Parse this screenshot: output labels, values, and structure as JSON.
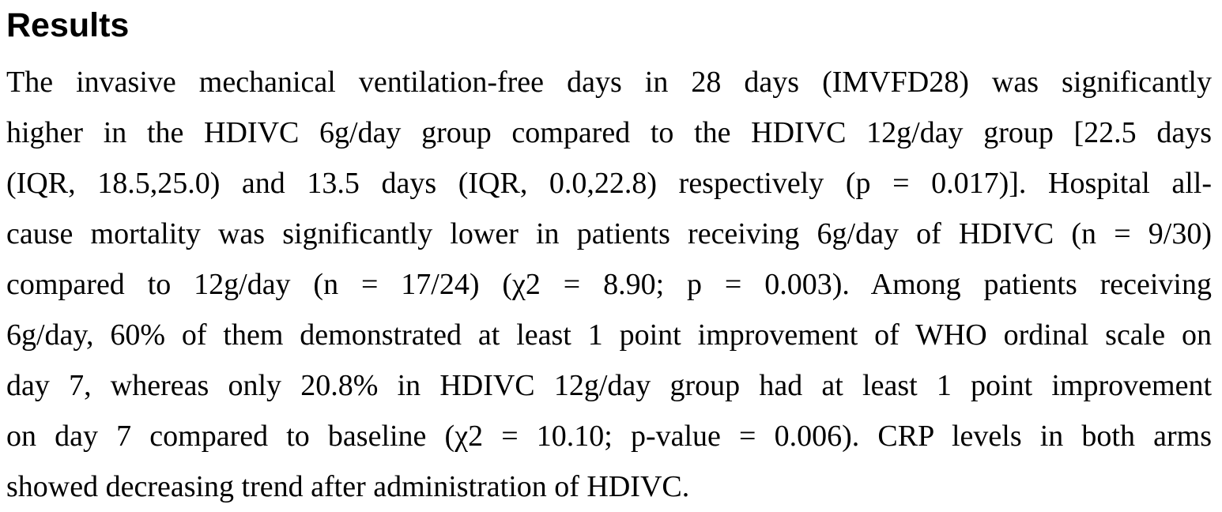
{
  "heading": "Results",
  "paragraph_lines": [
    "The invasive mechanical ventilation-free days in 28 days (IMVFD28) was significantly",
    "higher in the HDIVC 6g/day group compared to the HDIVC 12g/day group [22.5 days",
    "(IQR, 18.5,25.0) and 13.5 days (IQR, 0.0,22.8) respectively (p = 0.017)]. Hospital all-",
    "cause mortality was significantly lower in patients receiving 6g/day of HDIVC (n = 9/30)",
    "compared to 12g/day (n = 17/24) (χ2 = 8.90; p = 0.003). Among patients receiving",
    "6g/day, 60% of them demonstrated at least 1 point improvement of WHO ordinal scale on",
    "day 7, whereas only 20.8% in HDIVC 12g/day group had at least 1 point improvement",
    "on day 7 compared to baseline (χ2 = 10.10; p-value = 0.006). CRP levels in both arms",
    "showed decreasing trend after administration of HDIVC."
  ]
}
